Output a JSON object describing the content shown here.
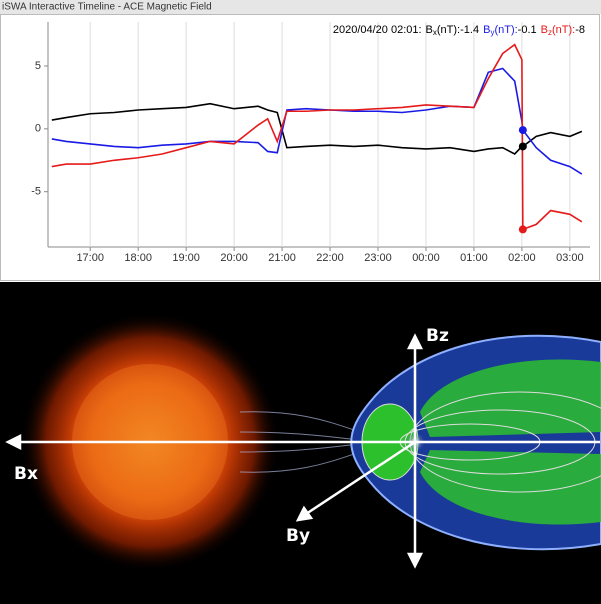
{
  "window_title": "iSWA Interactive Timeline - ACE Magnetic Field",
  "chart_data": {
    "type": "line",
    "timestamp": "2020/04/20 02:01:",
    "cursor_x": 26.02,
    "x": [
      16.2,
      16.5,
      17,
      17.5,
      18,
      18.5,
      19,
      19.5,
      20,
      20.5,
      20.7,
      20.9,
      21.1,
      21.5,
      22,
      22.5,
      23,
      23.5,
      24,
      24.5,
      25,
      25.3,
      25.6,
      25.85,
      26.0,
      26.02,
      26.3,
      26.6,
      27,
      27.25
    ],
    "series": [
      {
        "name": "B",
        "subscript": "x",
        "unit": "(nT):",
        "current": -1.4,
        "color": "#000000",
        "values": [
          0.7,
          0.9,
          1.2,
          1.3,
          1.5,
          1.6,
          1.7,
          2.0,
          1.6,
          1.8,
          1.5,
          1.3,
          -1.5,
          -1.4,
          -1.3,
          -1.4,
          -1.3,
          -1.5,
          -1.6,
          -1.5,
          -1.8,
          -1.6,
          -1.5,
          -2.0,
          -1.4,
          -1.4,
          -0.6,
          -0.3,
          -0.6,
          -0.2
        ]
      },
      {
        "name": "B",
        "subscript": "y",
        "unit": "(nT):",
        "current": -0.1,
        "color": "#1a1ae6",
        "values": [
          -0.8,
          -1.0,
          -1.2,
          -1.4,
          -1.5,
          -1.3,
          -1.2,
          -1.0,
          -1.0,
          -1.1,
          -1.8,
          -1.9,
          1.5,
          1.6,
          1.5,
          1.4,
          1.4,
          1.3,
          1.5,
          1.8,
          1.7,
          4.5,
          4.8,
          3.8,
          0.6,
          -0.1,
          -1.5,
          -2.5,
          -3.0,
          -3.6
        ]
      },
      {
        "name": "B",
        "subscript": "z",
        "unit": "(nT):",
        "current": -8,
        "color": "#e61a1a",
        "values": [
          -3.0,
          -2.8,
          -2.8,
          -2.5,
          -2.3,
          -2.0,
          -1.5,
          -1.0,
          -1.2,
          0.3,
          0.8,
          -1.0,
          1.4,
          1.4,
          1.5,
          1.5,
          1.6,
          1.7,
          1.9,
          1.8,
          1.7,
          4.0,
          6.0,
          6.7,
          5.5,
          -8.0,
          -7.6,
          -6.5,
          -6.8,
          -7.4
        ]
      }
    ],
    "xlim": [
      16.12,
      27.42
    ],
    "xticks": [
      {
        "value": 17,
        "label": "17:00"
      },
      {
        "value": 18,
        "label": "18:00"
      },
      {
        "value": 19,
        "label": "19:00"
      },
      {
        "value": 20,
        "label": "20:00"
      },
      {
        "value": 21,
        "label": "21:00"
      },
      {
        "value": 22,
        "label": "22:00"
      },
      {
        "value": 23,
        "label": "23:00"
      },
      {
        "value": 24,
        "label": "00:00"
      },
      {
        "value": 25,
        "label": "01:00"
      },
      {
        "value": 26,
        "label": "02:00"
      },
      {
        "value": 27,
        "label": "03:00"
      }
    ],
    "ylim": [
      -9.4,
      8.5
    ],
    "yticks": [
      -5,
      0,
      5
    ],
    "grid": true
  },
  "illustration": {
    "labels": [
      "Bz",
      "Bx",
      "By"
    ]
  }
}
